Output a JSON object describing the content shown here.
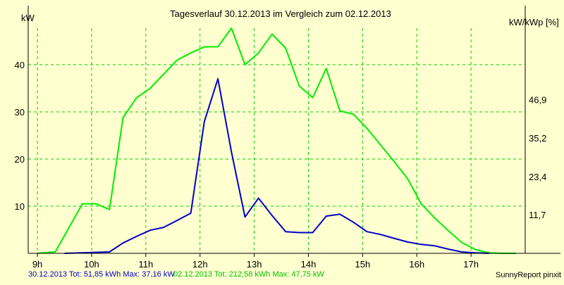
{
  "chart_data": {
    "type": "line",
    "title": "Tagesverlauf 30.12.2013 im Vergleich zum 02.12.2013",
    "ylabel_left": "kW",
    "ylabel_right": "kW/kWp [%]",
    "ylim": [
      0,
      47.75
    ],
    "y_ticks_left": [
      10,
      20,
      30,
      40
    ],
    "y_ticks_left_labels": [
      "10",
      "20",
      "30",
      "40"
    ],
    "y_ticks_right": [
      8.2,
      16.3,
      24.5,
      32.6
    ],
    "y_ticks_right_labels": [
      "11,7",
      "23,4",
      "35,2",
      "46,9"
    ],
    "xlim": [
      8.83,
      18
    ],
    "x_ticks": [
      9,
      10,
      11,
      12,
      13,
      14,
      15,
      16,
      17
    ],
    "x_tick_labels": [
      "9h",
      "10h",
      "11h",
      "12h",
      "13h",
      "14h",
      "15h",
      "16h",
      "17h"
    ],
    "colors": {
      "background": "#ffffd0",
      "grid": "#00d000",
      "axis": "#000000",
      "series_a": "#0000c8",
      "series_b": "#00ee00"
    },
    "series": [
      {
        "name": "30.12.2013",
        "color": "#0000c8",
        "x": [
          9.5,
          10.33,
          10.58,
          10.83,
          11.08,
          11.33,
          11.58,
          11.83,
          12.08,
          12.33,
          12.58,
          12.83,
          13.08,
          13.33,
          13.58,
          13.83,
          14.08,
          14.33,
          14.58,
          14.83,
          15.08,
          15.33,
          15.58,
          15.83,
          16.08,
          16.33,
          16.58,
          16.83,
          17.08,
          17.33
        ],
        "values": [
          0,
          0.3,
          2.2,
          3.6,
          4.9,
          5.5,
          7.0,
          8.5,
          28.0,
          37.0,
          21.5,
          7.7,
          11.7,
          8.0,
          4.6,
          4.4,
          4.4,
          7.9,
          8.3,
          6.6,
          4.6,
          4.0,
          3.2,
          2.4,
          1.9,
          1.6,
          0.9,
          0.3,
          0.1,
          0
        ]
      },
      {
        "name": "02.12.2013",
        "color": "#00ee00",
        "x": [
          9.0,
          9.33,
          9.83,
          10.08,
          10.33,
          10.58,
          10.83,
          11.08,
          11.33,
          11.58,
          11.83,
          12.08,
          12.33,
          12.58,
          12.83,
          13.08,
          13.33,
          13.58,
          13.83,
          14.08,
          14.33,
          14.58,
          14.83,
          15.08,
          15.33,
          15.58,
          15.83,
          16.08,
          16.33,
          16.58,
          16.83,
          17.08,
          17.33,
          17.58,
          17.83
        ],
        "values": [
          0,
          0.3,
          10.5,
          10.5,
          9.3,
          28.8,
          33.0,
          35.0,
          38.0,
          41.0,
          42.5,
          43.8,
          43.8,
          47.75,
          40.0,
          42.5,
          46.5,
          43.5,
          35.5,
          33.0,
          39.2,
          30.2,
          29.5,
          26.5,
          23.0,
          19.5,
          15.8,
          10.5,
          7.5,
          4.8,
          2.3,
          0.8,
          0.1,
          0,
          0
        ]
      }
    ],
    "footer_a": "30.12.2013 Tot: 51,85 kWh Max: 37,16 kW",
    "footer_b": "02.12.2013 Tot: 212,58 kWh Max: 47,75 kW",
    "credit": "SunnyReport pinxit"
  }
}
